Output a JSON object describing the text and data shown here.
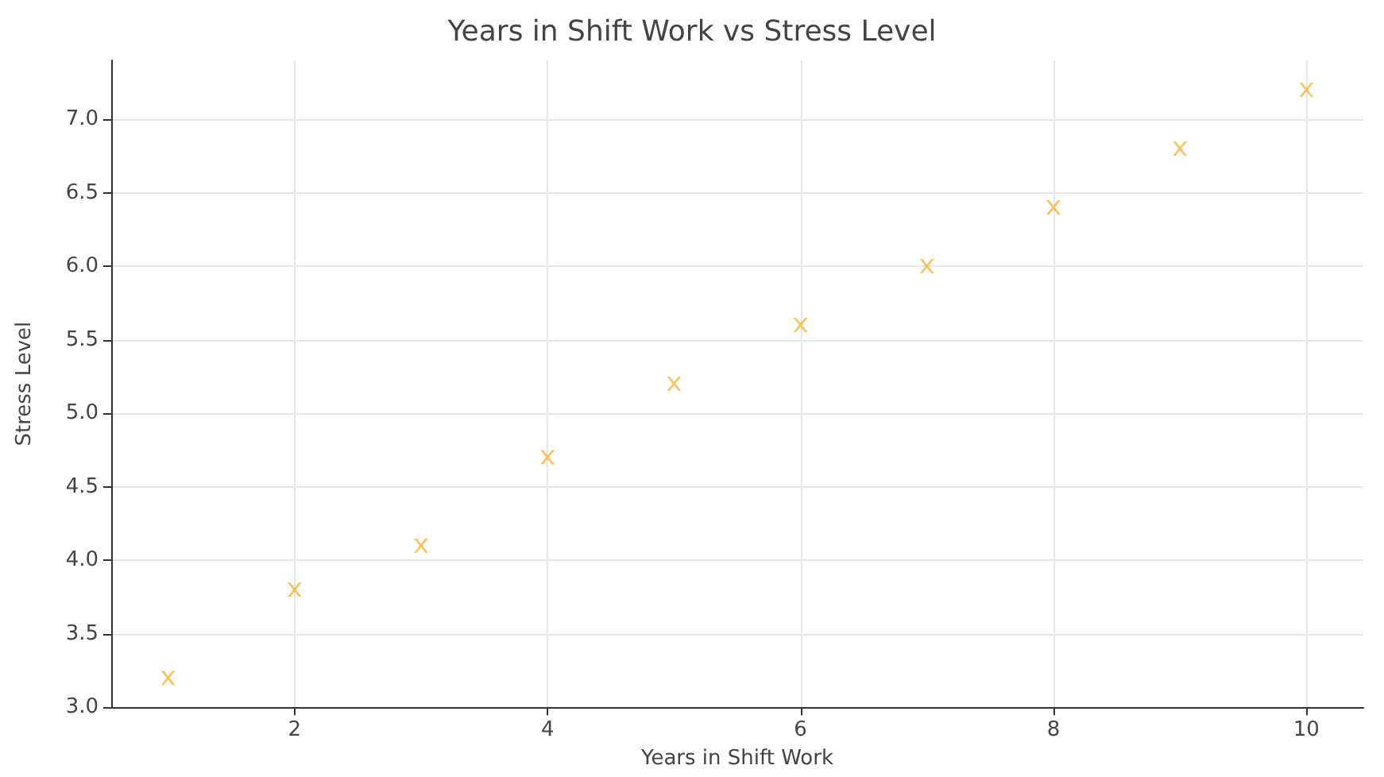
{
  "chart_data": {
    "type": "scatter",
    "title": "Years in Shift Work vs Stress Level",
    "xlabel": "Years in Shift Work",
    "ylabel": "Stress Level",
    "x": [
      1,
      2,
      3,
      4,
      5,
      6,
      7,
      8,
      9,
      10
    ],
    "series": [
      {
        "color": "#f5b43c",
        "values": [
          3.2,
          3.8,
          4.1,
          4.7,
          5.2,
          5.6,
          6.0,
          6.4,
          6.8,
          7.2
        ]
      }
    ],
    "xlim": [
      0.55,
      10.45
    ],
    "xticks": [
      2,
      4,
      6,
      8,
      10
    ],
    "ylim": [
      3.0,
      7.4
    ],
    "yticks": [
      {
        "value": 3,
        "label": "3.0"
      },
      {
        "value": 3.5,
        "label": "3.5"
      },
      {
        "value": 4,
        "label": "4.0"
      },
      {
        "value": 4.5,
        "label": "4.5"
      },
      {
        "value": 5,
        "label": "5.0"
      },
      {
        "value": 5.5,
        "label": "5.5"
      },
      {
        "value": 6,
        "label": "6.0"
      },
      {
        "value": 6.5,
        "label": "6.5"
      },
      {
        "value": 7,
        "label": "7.0"
      }
    ],
    "grid": true,
    "marker": "cross"
  }
}
